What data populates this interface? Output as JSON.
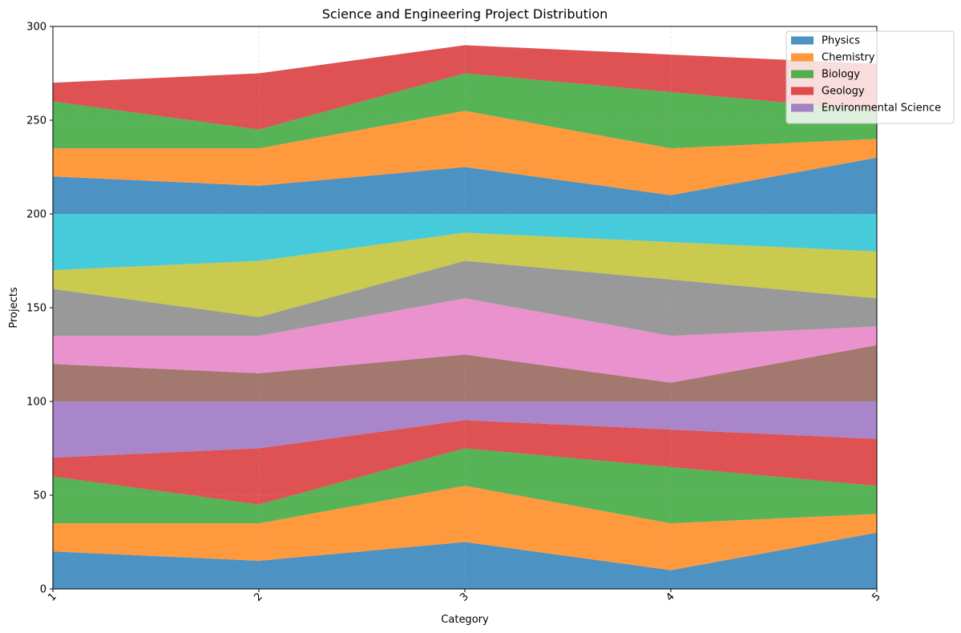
{
  "chart_data": {
    "type": "area",
    "stacked": true,
    "title": "Science and Engineering Project Distribution",
    "xlabel": "Category",
    "ylabel": "Projects",
    "x": [
      1,
      2,
      3,
      4,
      5
    ],
    "xticks": [
      "1",
      "2",
      "3",
      "4",
      "5"
    ],
    "xlim": [
      1,
      5
    ],
    "ylim": [
      0,
      300
    ],
    "yticks": [
      0,
      50,
      100,
      150,
      200,
      250,
      300
    ],
    "grid": true,
    "legend_position": "upper-right",
    "legend": [
      "Physics",
      "Chemistry",
      "Biology",
      "Geology",
      "Environmental Science"
    ],
    "series": [
      {
        "name": "Physics",
        "color": "#1f77b4",
        "values": [
          20,
          15,
          25,
          10,
          30
        ]
      },
      {
        "name": "Chemistry",
        "color": "#ff7f0e",
        "values": [
          15,
          20,
          30,
          25,
          10
        ]
      },
      {
        "name": "Biology",
        "color": "#2ca02c",
        "values": [
          25,
          10,
          20,
          30,
          15
        ]
      },
      {
        "name": "Geology",
        "color": "#d62728",
        "values": [
          10,
          30,
          15,
          20,
          25
        ]
      },
      {
        "name": "Environmental Science",
        "color": "#9467bd",
        "values": [
          30,
          25,
          10,
          15,
          20
        ]
      },
      {
        "color": "#8c564b",
        "values": [
          20,
          15,
          25,
          10,
          30
        ]
      },
      {
        "color": "#e377c2",
        "values": [
          15,
          20,
          30,
          25,
          10
        ]
      },
      {
        "color": "#7f7f7f",
        "values": [
          25,
          10,
          20,
          30,
          15
        ]
      },
      {
        "color": "#bcbd22",
        "values": [
          10,
          30,
          15,
          20,
          25
        ]
      },
      {
        "color": "#17becf",
        "values": [
          30,
          25,
          10,
          15,
          20
        ]
      },
      {
        "color": "#1f77b4",
        "values": [
          20,
          15,
          25,
          10,
          30
        ]
      },
      {
        "color": "#ff7f0e",
        "values": [
          15,
          20,
          30,
          25,
          10
        ]
      },
      {
        "color": "#2ca02c",
        "values": [
          25,
          10,
          20,
          30,
          15
        ]
      },
      {
        "color": "#d62728",
        "values": [
          10,
          30,
          15,
          20,
          25
        ]
      }
    ]
  }
}
